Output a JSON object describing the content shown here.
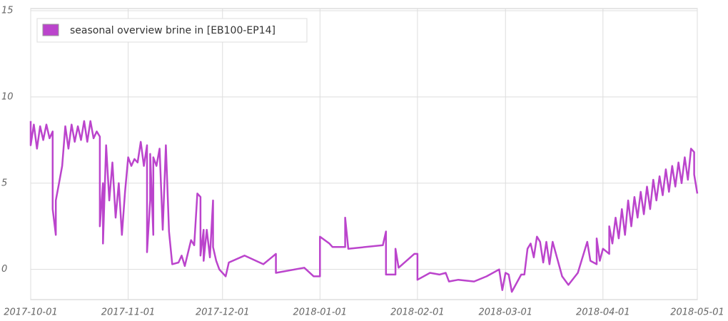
{
  "chart_data": {
    "type": "line",
    "x": [
      "2017-10-01",
      "2017-10-01",
      "2017-10-02",
      "2017-10-03",
      "2017-10-04",
      "2017-10-05",
      "2017-10-06",
      "2017-10-07",
      "2017-10-08",
      "2017-10-08",
      "2017-10-09",
      "2017-10-09",
      "2017-10-10",
      "2017-10-11",
      "2017-10-12",
      "2017-10-13",
      "2017-10-14",
      "2017-10-15",
      "2017-10-16",
      "2017-10-17",
      "2017-10-18",
      "2017-10-19",
      "2017-10-20",
      "2017-10-21",
      "2017-10-22",
      "2017-10-23",
      "2017-10-23",
      "2017-10-24",
      "2017-10-24",
      "2017-10-25",
      "2017-10-26",
      "2017-10-27",
      "2017-10-28",
      "2017-10-29",
      "2017-10-30",
      "2017-10-31",
      "2017-11-01",
      "2017-11-02",
      "2017-11-03",
      "2017-11-04",
      "2017-11-05",
      "2017-11-06",
      "2017-11-07",
      "2017-11-07",
      "2017-11-08",
      "2017-11-08",
      "2017-11-09",
      "2017-11-09",
      "2017-11-10",
      "2017-11-11",
      "2017-11-12",
      "2017-11-13",
      "2017-11-14",
      "2017-11-15",
      "2017-11-17",
      "2017-11-18",
      "2017-11-19",
      "2017-11-21",
      "2017-11-22",
      "2017-11-23",
      "2017-11-24",
      "2017-11-24",
      "2017-11-25",
      "2017-11-25",
      "2017-11-26",
      "2017-11-27",
      "2017-11-28",
      "2017-11-28",
      "2017-11-29",
      "2017-11-30",
      "2017-12-02",
      "2017-12-03",
      "2017-12-08",
      "2017-12-14",
      "2017-12-18",
      "2017-12-18",
      "2017-12-27",
      "2017-12-30",
      "2018-01-01",
      "2018-01-01",
      "2018-01-04",
      "2018-01-05",
      "2018-01-09",
      "2018-01-09",
      "2018-01-10",
      "2018-01-21",
      "2018-01-22",
      "2018-01-22",
      "2018-01-25",
      "2018-01-25",
      "2018-01-26",
      "2018-01-31",
      "2018-02-01",
      "2018-02-01",
      "2018-02-05",
      "2018-02-08",
      "2018-02-10",
      "2018-02-11",
      "2018-02-14",
      "2018-02-19",
      "2018-02-23",
      "2018-02-27",
      "2018-02-28",
      "2018-03-01",
      "2018-03-02",
      "2018-03-03",
      "2018-03-06",
      "2018-03-07",
      "2018-03-08",
      "2018-03-09",
      "2018-03-10",
      "2018-03-11",
      "2018-03-12",
      "2018-03-13",
      "2018-03-14",
      "2018-03-15",
      "2018-03-16",
      "2018-03-19",
      "2018-03-21",
      "2018-03-24",
      "2018-03-27",
      "2018-03-28",
      "2018-03-30",
      "2018-03-30",
      "2018-03-31",
      "2018-04-01",
      "2018-04-03",
      "2018-04-03",
      "2018-04-04",
      "2018-04-05",
      "2018-04-06",
      "2018-04-07",
      "2018-04-08",
      "2018-04-09",
      "2018-04-10",
      "2018-04-11",
      "2018-04-12",
      "2018-04-13",
      "2018-04-14",
      "2018-04-15",
      "2018-04-16",
      "2018-04-17",
      "2018-04-18",
      "2018-04-19",
      "2018-04-20",
      "2018-04-21",
      "2018-04-22",
      "2018-04-23",
      "2018-04-24",
      "2018-04-25",
      "2018-04-26",
      "2018-04-27",
      "2018-04-28",
      "2018-04-29",
      "2018-04-30",
      "2018-04-30",
      "2018-05-01"
    ],
    "series": [
      {
        "name": "seasonal overview brine in [EB100-EP14]",
        "color": "#bb44cc",
        "values": [
          8.6,
          7.2,
          8.4,
          7.0,
          8.3,
          7.5,
          8.4,
          7.6,
          8.0,
          3.5,
          2.0,
          4.0,
          5.0,
          6.0,
          8.3,
          7.0,
          8.4,
          7.4,
          8.3,
          7.5,
          8.6,
          7.4,
          8.6,
          7.6,
          8.0,
          7.7,
          2.5,
          5.0,
          1.5,
          7.2,
          4.0,
          6.2,
          3.0,
          5.0,
          2.0,
          4.5,
          6.5,
          6.0,
          6.4,
          6.2,
          7.4,
          6.0,
          7.2,
          1.0,
          4.0,
          6.7,
          2.0,
          6.5,
          6.0,
          7.0,
          2.3,
          7.2,
          2.2,
          0.3,
          0.4,
          0.8,
          0.2,
          1.7,
          1.4,
          4.4,
          4.2,
          0.8,
          2.3,
          0.5,
          2.3,
          0.7,
          4.0,
          1.3,
          0.5,
          0.0,
          -0.4,
          0.4,
          0.8,
          0.3,
          0.9,
          -0.2,
          0.1,
          -0.4,
          -0.4,
          1.9,
          1.5,
          1.3,
          1.3,
          3.0,
          1.2,
          1.4,
          2.2,
          -0.3,
          -0.3,
          1.2,
          0.1,
          0.9,
          0.9,
          -0.6,
          -0.2,
          -0.3,
          -0.2,
          -0.7,
          -0.6,
          -0.7,
          -0.4,
          0.0,
          -1.2,
          -0.2,
          -0.3,
          -1.3,
          -0.3,
          -0.3,
          1.2,
          1.5,
          0.7,
          1.9,
          1.6,
          0.4,
          1.6,
          0.3,
          1.6,
          -0.4,
          -0.9,
          -0.2,
          1.6,
          0.5,
          0.3,
          1.8,
          0.5,
          1.2,
          0.9,
          2.5,
          1.5,
          3.0,
          1.8,
          3.5,
          2.0,
          4.0,
          2.5,
          4.2,
          3.0,
          4.5,
          3.2,
          4.8,
          3.5,
          5.2,
          4.0,
          5.4,
          4.3,
          5.8,
          4.5,
          6.0,
          4.8,
          6.2,
          5.0,
          6.5,
          5.2,
          7.0,
          6.8,
          5.5,
          4.4
        ]
      }
    ],
    "xlim": [
      "2017-10-01",
      "2018-05-01"
    ],
    "xticks": [
      "2017-10-01",
      "2017-11-01",
      "2017-12-01",
      "2018-01-01",
      "2018-02-01",
      "2018-03-01",
      "2018-04-01",
      "2018-05-01"
    ],
    "ylim": [
      -1.75,
      15
    ],
    "yticks": [
      0,
      5,
      10,
      15
    ],
    "grid": true,
    "legend": "top-left"
  }
}
